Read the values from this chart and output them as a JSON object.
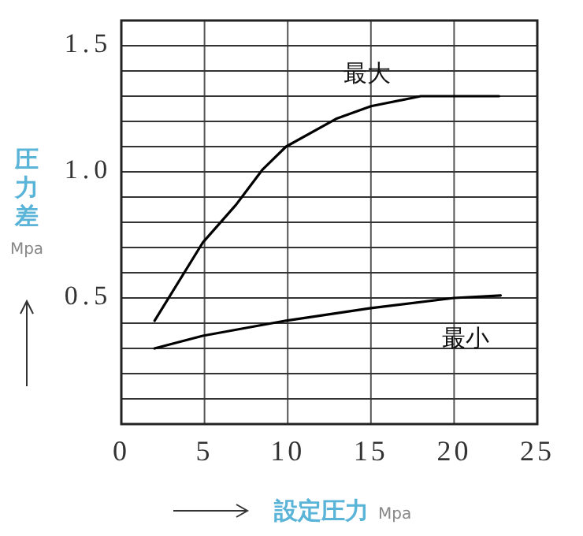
{
  "chart_data": {
    "type": "line",
    "xlabel": "設定圧力 Mpa",
    "ylabel": "圧力差 Mpa",
    "xlim": [
      0,
      25
    ],
    "ylim": [
      0,
      1.6
    ],
    "xticks": [
      0,
      5,
      10,
      15,
      20,
      25
    ],
    "yticks": [
      {
        "value": 0.1,
        "label": null
      },
      {
        "value": 0.2,
        "label": null
      },
      {
        "value": 0.3,
        "label": null
      },
      {
        "value": 0.4,
        "label": null
      },
      {
        "value": 0.5,
        "label": "0.5"
      },
      {
        "value": 0.6,
        "label": null
      },
      {
        "value": 0.7,
        "label": null
      },
      {
        "value": 0.8,
        "label": null
      },
      {
        "value": 0.9,
        "label": null
      },
      {
        "value": 1.0,
        "label": "1.0"
      },
      {
        "value": 1.1,
        "label": null
      },
      {
        "value": 1.2,
        "label": null
      },
      {
        "value": 1.3,
        "label": null
      },
      {
        "value": 1.4,
        "label": null
      },
      {
        "value": 1.5,
        "label": "1.5"
      }
    ],
    "grid": true,
    "marker": "none",
    "line_style": "solid",
    "series": [
      {
        "name": "最大",
        "color": "#000000",
        "x": [
          2.0,
          4.9,
          6.9,
          8.5,
          9.9,
          12.9,
          15,
          18,
          20,
          22.7
        ],
        "values": [
          0.41,
          0.72,
          0.87,
          1.01,
          1.1,
          1.21,
          1.26,
          1.3,
          1.3,
          1.3
        ]
      },
      {
        "name": "最小",
        "color": "#000000",
        "x": [
          2.0,
          4.9,
          9.9,
          15,
          20,
          22.8
        ],
        "values": [
          0.3,
          0.35,
          0.41,
          0.46,
          0.5,
          0.51
        ]
      }
    ]
  }
}
